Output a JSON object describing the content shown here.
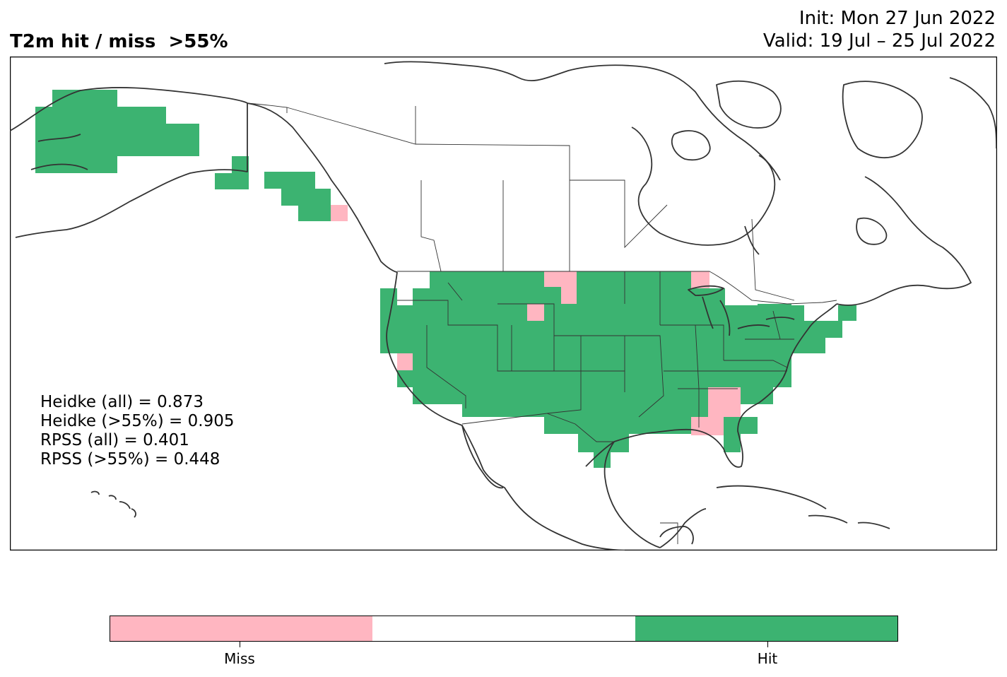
{
  "title": "T2m hit / miss  >55%",
  "init": "Init: Mon 27 Jun 2022",
  "valid": "Valid: 19 Jul – 25 Jul 2022",
  "scores": [
    "Heidke (all) = 0.873",
    "Heidke (>55%) = 0.905",
    "RPSS (all) = 0.401",
    "RPSS (>55%) = 0.448"
  ],
  "legend": {
    "miss_label": "Miss",
    "hit_label": "Hit",
    "miss_color": "#ffb6c1",
    "neutral_color": "#ffffff",
    "hit_color": "#3cb371"
  },
  "colors": {
    "coastline": "#333333",
    "border": "#333333"
  }
}
